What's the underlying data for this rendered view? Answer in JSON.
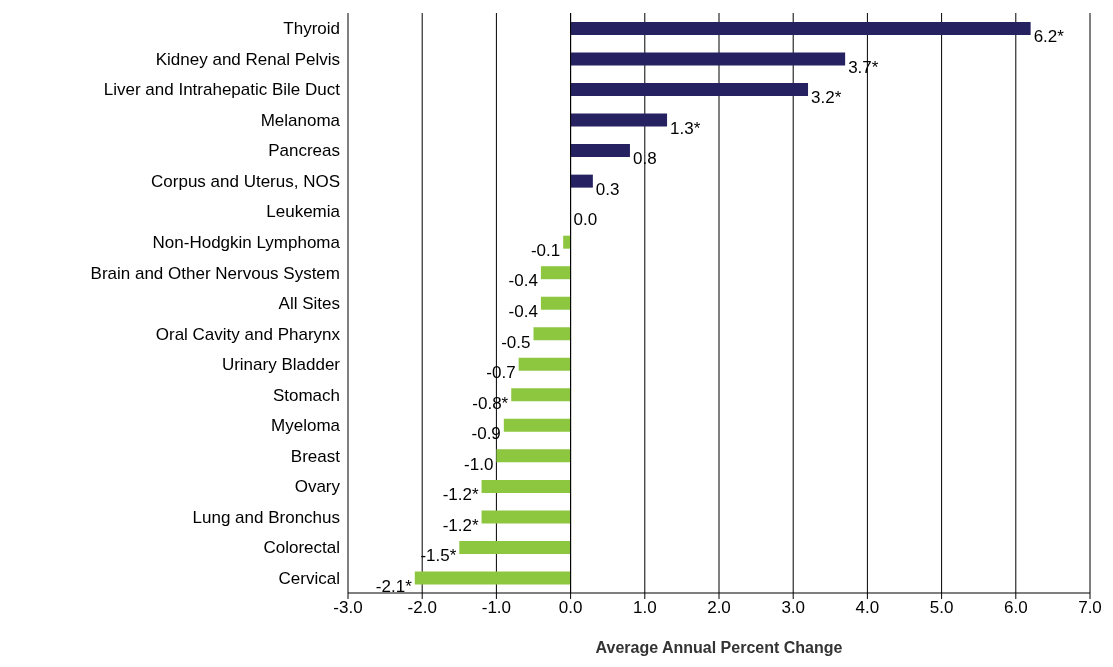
{
  "chart_data": {
    "type": "bar",
    "orientation": "horizontal",
    "xlabel": "Average Annual Percent Change",
    "categories": [
      "Thyroid",
      "Kidney and Renal Pelvis",
      "Liver and Intrahepatic Bile Duct",
      "Melanoma",
      "Pancreas",
      "Corpus and Uterus, NOS",
      "Leukemia",
      "Non-Hodgkin Lymphoma",
      "Brain and Other Nervous System",
      "All Sites",
      "Oral Cavity and Pharynx",
      "Urinary Bladder",
      "Stomach",
      "Myeloma",
      "Breast",
      "Ovary",
      "Lung and Bronchus",
      "Colorectal",
      "Cervical"
    ],
    "values": [
      6.2,
      3.7,
      3.2,
      1.3,
      0.8,
      0.3,
      0.0,
      -0.1,
      -0.4,
      -0.4,
      -0.5,
      -0.7,
      -0.8,
      -0.9,
      -1.0,
      -1.2,
      -1.2,
      -1.5,
      -2.1
    ],
    "value_labels": [
      "6.2*",
      "3.7*",
      "3.2*",
      "1.3*",
      "0.8",
      "0.3",
      "0.0",
      "-0.1",
      "-0.4",
      "-0.4",
      "-0.5",
      "-0.7",
      "-0.8*",
      "-0.9",
      "-1.0",
      "-1.2*",
      "-1.2*",
      "-1.5*",
      "-2.1*"
    ],
    "colors": [
      "#262262",
      "#262262",
      "#262262",
      "#262262",
      "#262262",
      "#262262",
      "#262262",
      "#8dc63f",
      "#8dc63f",
      "#8dc63f",
      "#8dc63f",
      "#8dc63f",
      "#8dc63f",
      "#8dc63f",
      "#8dc63f",
      "#8dc63f",
      "#8dc63f",
      "#8dc63f",
      "#8dc63f"
    ],
    "xlim": [
      -3,
      7
    ],
    "xticks": [
      {
        "value": -3,
        "label": "-3.0"
      },
      {
        "value": -2,
        "label": "-2.0"
      },
      {
        "value": -1,
        "label": "-1.0"
      },
      {
        "value": 0,
        "label": "0.0"
      },
      {
        "value": 1,
        "label": "1.0"
      },
      {
        "value": 2,
        "label": "2.0"
      },
      {
        "value": 3,
        "label": "3.0"
      },
      {
        "value": 4,
        "label": "4.0"
      },
      {
        "value": 5,
        "label": "5.0"
      },
      {
        "value": 6,
        "label": "6.0"
      },
      {
        "value": 7,
        "label": "7.0"
      }
    ],
    "grid": "x",
    "legend": false
  }
}
